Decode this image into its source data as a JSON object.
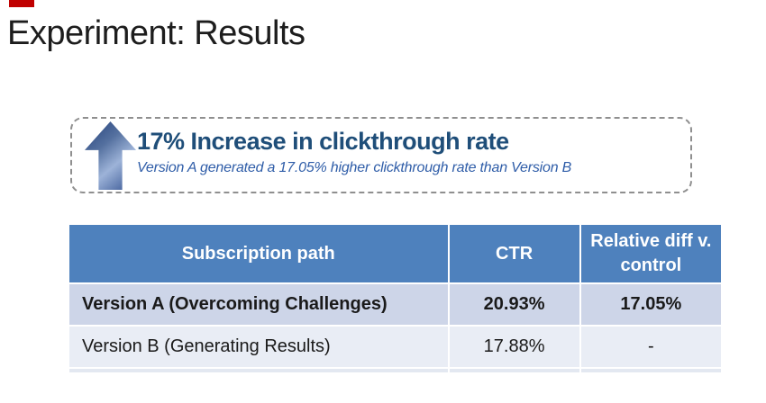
{
  "slide": {
    "title": "Experiment: Results"
  },
  "callout": {
    "icon": "up-arrow-icon",
    "headline": "17% Increase in clickthrough rate",
    "subtitle": "Version A generated a 17.05% higher clickthrough rate than Version B"
  },
  "table": {
    "columns": {
      "path": "Subscription path",
      "ctr": "CTR",
      "relative_diff": "Relative diff v. control"
    },
    "rows": [
      {
        "path": "Version A (Overcoming Challenges)",
        "ctr": "20.93%",
        "relative_diff": "17.05%",
        "emphasis": true
      },
      {
        "path": "Version B (Generating Results)",
        "ctr": "17.88%",
        "relative_diff": "-",
        "emphasis": false
      }
    ]
  },
  "colors": {
    "accent_red": "#C00000",
    "table_header_blue": "#4E81BD",
    "row_a_bg": "#CDD5E8",
    "row_b_bg": "#E9EDF5",
    "headline_blue": "#1F4E79",
    "subtitle_blue": "#2F5DA8"
  }
}
